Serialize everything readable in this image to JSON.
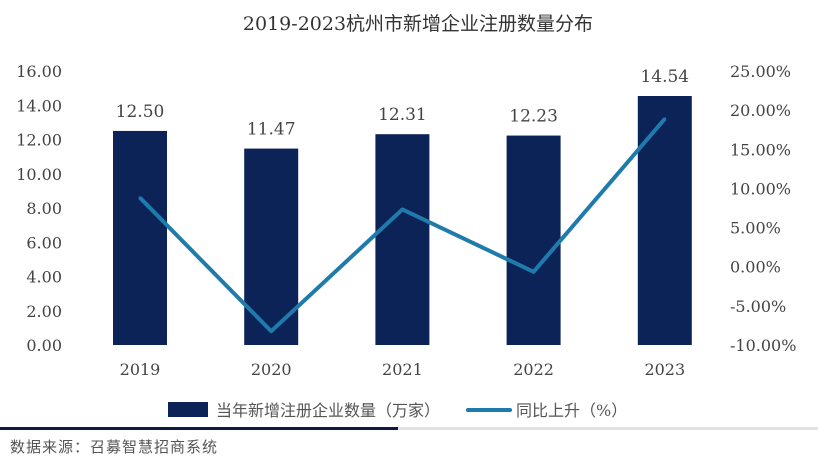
{
  "chart_data": {
    "type": "bar+line",
    "title": "2019-2023杭州市新增企业注册数量分布",
    "categories": [
      "2019",
      "2020",
      "2021",
      "2022",
      "2023"
    ],
    "series": [
      {
        "name": "当年新增注册企业数量（万家）",
        "type": "bar",
        "axis": "left",
        "values": [
          12.5,
          11.47,
          12.31,
          12.23,
          14.54
        ],
        "labels": [
          "12.50",
          "11.47",
          "12.31",
          "12.23",
          "14.54"
        ],
        "color": "#0c2358"
      },
      {
        "name": "同比上升（%）",
        "type": "line",
        "axis": "right",
        "values": [
          8.8,
          -8.24,
          7.32,
          -0.65,
          18.89
        ],
        "color": "#1f7bab"
      }
    ],
    "left_axis": {
      "ylim": [
        0,
        16
      ],
      "ticks": [
        "0.00",
        "2.00",
        "4.00",
        "6.00",
        "8.00",
        "10.00",
        "12.00",
        "14.00",
        "16.00"
      ]
    },
    "right_axis": {
      "ylim": [
        -10,
        25
      ],
      "ticks": [
        "-10.00%",
        "-5.00%",
        "0.00%",
        "5.00%",
        "10.00%",
        "15.00%",
        "20.00%",
        "25.00%"
      ]
    },
    "grid": false,
    "legend": "bottom"
  },
  "source": "数据来源：召募智慧招商系统"
}
